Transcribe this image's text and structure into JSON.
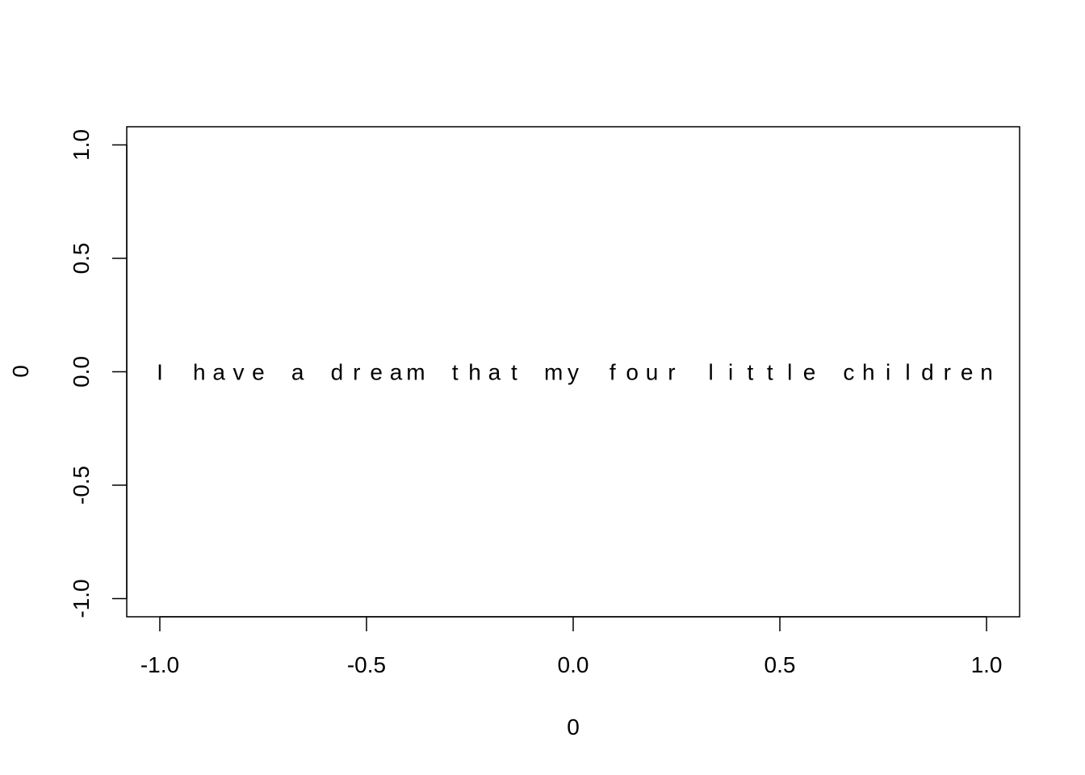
{
  "chart_data": {
    "type": "scatter",
    "title": "",
    "xlabel": "0",
    "ylabel": "0",
    "xlim": [
      -1.08,
      1.08
    ],
    "ylim": [
      -1.08,
      1.08
    ],
    "x_ticks": [
      {
        "value": -1.0,
        "label": "-1.0"
      },
      {
        "value": -0.5,
        "label": "-0.5"
      },
      {
        "value": 0.0,
        "label": "0.0"
      },
      {
        "value": 0.5,
        "label": "0.5"
      },
      {
        "value": 1.0,
        "label": "1.0"
      }
    ],
    "y_ticks": [
      {
        "value": -1.0,
        "label": "-1.0"
      },
      {
        "value": -0.5,
        "label": "-0.5"
      },
      {
        "value": 0.0,
        "label": "0.0"
      },
      {
        "value": 0.5,
        "label": "0.5"
      },
      {
        "value": 1.0,
        "label": "1.0"
      }
    ],
    "grid": false,
    "legend": "none",
    "annotation": {
      "text": "I have a dream that my four little children",
      "x_from": -1.0,
      "x_to": 1.0,
      "y": 0.0
    },
    "colors": {
      "foreground": "#000000",
      "background": "#ffffff"
    }
  }
}
